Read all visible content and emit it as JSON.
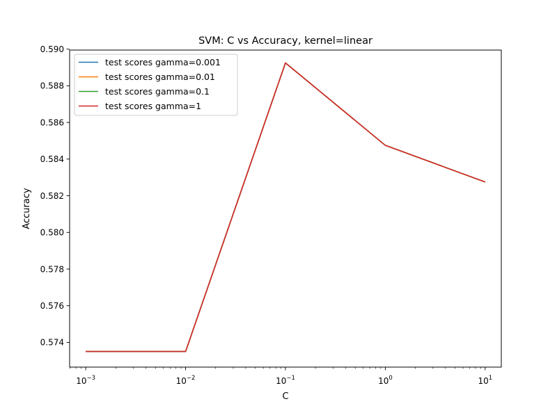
{
  "chart_data": {
    "type": "line",
    "title": "SVM: C vs Accuracy, kernel=linear",
    "xlabel": "C",
    "ylabel": "Accuracy",
    "xscale": "log",
    "x": [
      0.001,
      0.01,
      0.1,
      1,
      10
    ],
    "xticks": [
      {
        "value": 0.001,
        "base": "10",
        "exp": "−3"
      },
      {
        "value": 0.01,
        "base": "10",
        "exp": "−2"
      },
      {
        "value": 0.1,
        "base": "10",
        "exp": "−1"
      },
      {
        "value": 1,
        "base": "10",
        "exp": "0"
      },
      {
        "value": 10,
        "base": "10",
        "exp": "1"
      }
    ],
    "yticks": [
      "0.574",
      "0.576",
      "0.578",
      "0.580",
      "0.582",
      "0.584",
      "0.586",
      "0.588",
      "0.590"
    ],
    "xlim": [
      0.00069,
      14.5
    ],
    "ylim": [
      0.57265,
      0.58995
    ],
    "legend_position": "upper-left",
    "grid": false,
    "series": [
      {
        "name": "test scores gamma=0.001",
        "color": "#1f77b4",
        "values": [
          0.5735,
          0.5735,
          0.58925,
          0.58475,
          0.58275
        ]
      },
      {
        "name": "test scores gamma=0.01",
        "color": "#ff7f0e",
        "values": [
          0.5735,
          0.5735,
          0.58925,
          0.58475,
          0.58275
        ]
      },
      {
        "name": "test scores gamma=0.1",
        "color": "#2ca02c",
        "values": [
          0.5735,
          0.5735,
          0.58925,
          0.58475,
          0.58275
        ]
      },
      {
        "name": "test scores gamma=1",
        "color": "#d62728",
        "values": [
          0.5735,
          0.5735,
          0.58925,
          0.58475,
          0.58275
        ]
      }
    ]
  }
}
